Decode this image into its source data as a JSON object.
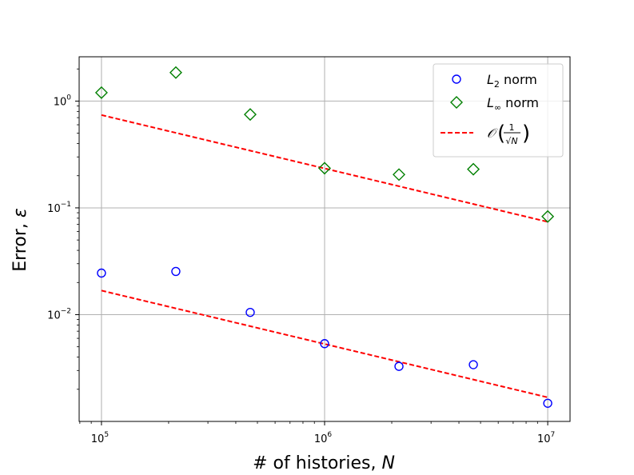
{
  "chart_data": {
    "type": "scatter",
    "x_scale": "log",
    "y_scale": "log",
    "xlabel": "# of histories, ",
    "xlabel_var": "N",
    "ylabel": "Error, ",
    "ylabel_var": "ε",
    "xlim": [
      79432,
      12589254
    ],
    "ylim": [
      0.001,
      2.6
    ],
    "grid": true,
    "legend_position": "top-right",
    "x_ticks": [
      {
        "value": 100000,
        "base": "10",
        "exp": "5"
      },
      {
        "value": 1000000,
        "base": "10",
        "exp": "6"
      },
      {
        "value": 10000000,
        "base": "10",
        "exp": "7"
      }
    ],
    "y_ticks": [
      {
        "value": 0.01,
        "base": "10",
        "exp": "−2"
      },
      {
        "value": 0.1,
        "base": "10",
        "exp": "−1"
      },
      {
        "value": 1,
        "base": "10",
        "exp": "0"
      }
    ],
    "x": [
      100000,
      215443,
      464159,
      1000000,
      2154435,
      4641589,
      10000000
    ],
    "series": [
      {
        "name": "L2 norm",
        "legend_main": "L",
        "legend_sub": "2",
        "legend_rest": " norm",
        "marker": "circle",
        "color": "#0000ff",
        "values": [
          0.0245,
          0.0254,
          0.0105,
          0.00535,
          0.00328,
          0.0034,
          0.00148
        ]
      },
      {
        "name": "L∞ norm",
        "legend_main": "L",
        "legend_sub": "∞",
        "legend_rest": " norm",
        "marker": "diamond",
        "color": "#008000",
        "values": [
          1.2,
          1.85,
          0.75,
          0.235,
          0.205,
          0.23,
          0.083
        ]
      }
    ],
    "reference_lines": [
      {
        "name": "O(1/√N)",
        "color": "#ff0000",
        "dash": true,
        "x": [
          100000,
          10000000
        ],
        "values": [
          0.0168,
          0.00168
        ]
      },
      {
        "name": "O(1/√N)",
        "color": "#ff0000",
        "dash": true,
        "x": [
          100000,
          10000000
        ],
        "values": [
          0.74,
          0.074
        ]
      }
    ],
    "legend": {
      "ref_label_script": "𝒪",
      "ref_label_num": "1",
      "ref_label_den": "√N"
    }
  }
}
